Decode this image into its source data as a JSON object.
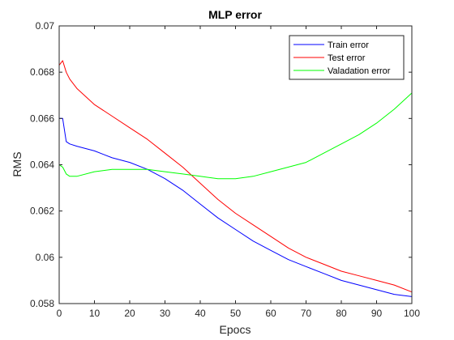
{
  "chart_data": {
    "type": "line",
    "title": "MLP error",
    "xlabel": "Epocs",
    "ylabel": "RMS",
    "xlim": [
      0,
      100
    ],
    "ylim": [
      0.058,
      0.07
    ],
    "xticks": [
      0,
      10,
      20,
      30,
      40,
      50,
      60,
      70,
      80,
      90,
      100
    ],
    "xtick_labels": [
      "0",
      "10",
      "20",
      "30",
      "40",
      "50",
      "60",
      "70",
      "80",
      "90",
      "100"
    ],
    "yticks": [
      0.058,
      0.06,
      0.062,
      0.064,
      0.066,
      0.068,
      0.07
    ],
    "ytick_labels": [
      "0.058",
      "0.06",
      "0.062",
      "0.064",
      "0.066",
      "0.068",
      "0.07"
    ],
    "grid": false,
    "legend_position": "top-right",
    "x": [
      0,
      1,
      2,
      3,
      5,
      10,
      15,
      20,
      25,
      30,
      35,
      40,
      45,
      50,
      55,
      60,
      65,
      70,
      75,
      80,
      85,
      90,
      95,
      100
    ],
    "series": [
      {
        "name": "Train error",
        "color": "#0000ff",
        "values": [
          0.066,
          0.066,
          0.065,
          0.0649,
          0.0648,
          0.0646,
          0.0643,
          0.0641,
          0.0638,
          0.0634,
          0.0629,
          0.0623,
          0.0617,
          0.0612,
          0.0607,
          0.0603,
          0.0599,
          0.0596,
          0.0593,
          0.059,
          0.0588,
          0.0586,
          0.0584,
          0.0583
        ]
      },
      {
        "name": "Test error",
        "color": "#ff0000",
        "values": [
          0.0683,
          0.0685,
          0.068,
          0.0677,
          0.0673,
          0.0666,
          0.0661,
          0.0656,
          0.0651,
          0.0645,
          0.0639,
          0.0632,
          0.0625,
          0.0619,
          0.0614,
          0.0609,
          0.0604,
          0.06,
          0.0597,
          0.0594,
          0.0592,
          0.059,
          0.0588,
          0.0585
        ]
      },
      {
        "name": "Valadation error",
        "color": "#00ff00",
        "values": [
          0.064,
          0.0639,
          0.0636,
          0.0635,
          0.0635,
          0.0637,
          0.0638,
          0.0638,
          0.0638,
          0.0637,
          0.0636,
          0.0635,
          0.0634,
          0.0634,
          0.0635,
          0.0637,
          0.0639,
          0.0641,
          0.0645,
          0.0649,
          0.0653,
          0.0658,
          0.0664,
          0.0671
        ]
      }
    ]
  }
}
